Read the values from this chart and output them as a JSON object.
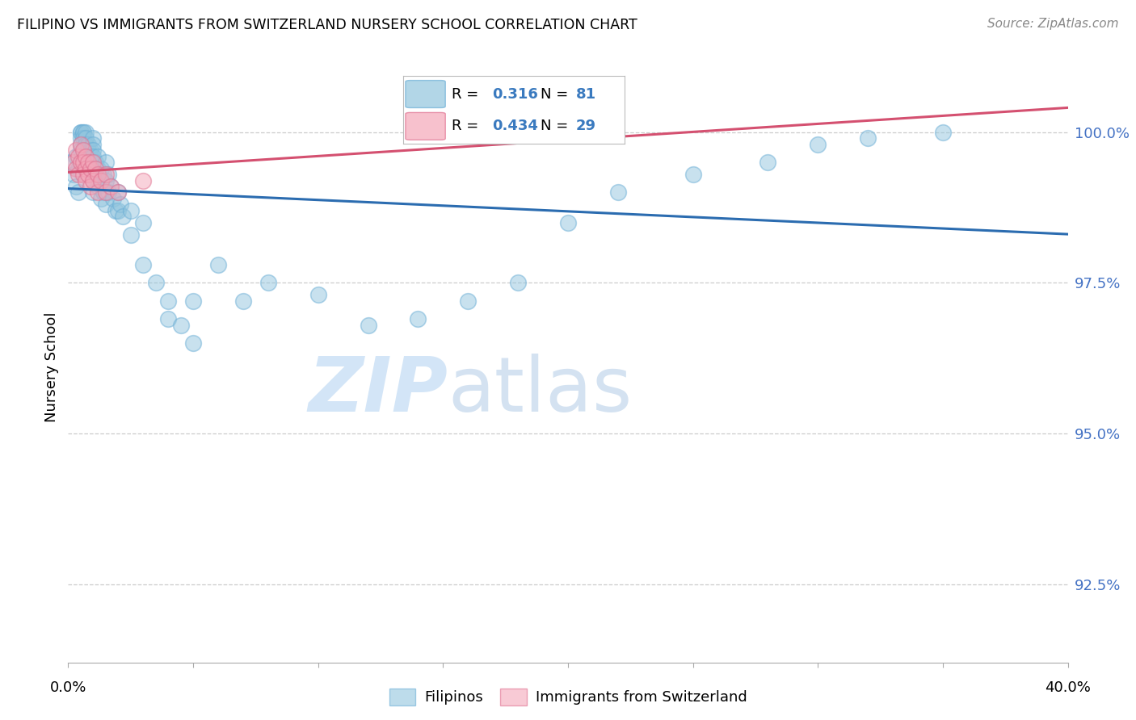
{
  "title": "FILIPINO VS IMMIGRANTS FROM SWITZERLAND NURSERY SCHOOL CORRELATION CHART",
  "source": "Source: ZipAtlas.com",
  "ylabel": "Nursery School",
  "yticks": [
    92.5,
    95.0,
    97.5,
    100.0
  ],
  "ytick_labels": [
    "92.5%",
    "95.0%",
    "97.5%",
    "100.0%"
  ],
  "xlim": [
    0.0,
    40.0
  ],
  "ylim": [
    91.2,
    101.0
  ],
  "legend1_R": "0.316",
  "legend1_N": "81",
  "legend2_R": "0.434",
  "legend2_N": "29",
  "blue_color": "#92c5de",
  "pink_color": "#f4a7b9",
  "blue_edge_color": "#6baed6",
  "pink_edge_color": "#e07090",
  "blue_line_color": "#2b6cb0",
  "pink_line_color": "#d45070",
  "blue_label_color": "#3a7abf",
  "pink_label_color": "#d45070",
  "ytick_color": "#4472c4",
  "watermark_zip_color": "#c8dff5",
  "watermark_atlas_color": "#b8d0e8",
  "grid_color": "#cccccc",
  "legend_box_color": "#e8e8e8",
  "filipinos_x": [
    0.1,
    0.2,
    0.3,
    0.3,
    0.4,
    0.4,
    0.5,
    0.5,
    0.5,
    0.5,
    0.5,
    0.5,
    0.6,
    0.6,
    0.6,
    0.6,
    0.7,
    0.7,
    0.7,
    0.7,
    0.8,
    0.8,
    0.8,
    0.8,
    0.9,
    0.9,
    0.9,
    1.0,
    1.0,
    1.0,
    1.0,
    1.0,
    1.0,
    1.0,
    1.1,
    1.1,
    1.2,
    1.2,
    1.2,
    1.3,
    1.3,
    1.3,
    1.4,
    1.4,
    1.5,
    1.5,
    1.5,
    1.6,
    1.6,
    1.7,
    1.8,
    1.9,
    2.0,
    2.0,
    2.1,
    2.2,
    2.5,
    2.5,
    3.0,
    3.0,
    3.5,
    4.0,
    4.0,
    4.5,
    5.0,
    5.0,
    6.0,
    7.0,
    8.0,
    10.0,
    12.0,
    14.0,
    16.0,
    18.0,
    20.0,
    22.0,
    25.0,
    28.0,
    30.0,
    32.0,
    35.0
  ],
  "filipinos_y": [
    99.5,
    99.3,
    99.6,
    99.1,
    99.4,
    99.0,
    100.0,
    100.0,
    99.9,
    99.8,
    99.7,
    99.5,
    100.0,
    100.0,
    99.9,
    99.7,
    100.0,
    99.9,
    99.8,
    99.6,
    99.8,
    99.7,
    99.5,
    99.3,
    99.7,
    99.6,
    99.4,
    99.9,
    99.8,
    99.7,
    99.6,
    99.4,
    99.2,
    99.0,
    99.5,
    99.3,
    99.6,
    99.4,
    99.1,
    99.4,
    99.2,
    98.9,
    99.3,
    99.0,
    99.5,
    99.2,
    98.8,
    99.3,
    99.0,
    99.1,
    98.9,
    98.7,
    99.0,
    98.7,
    98.8,
    98.6,
    98.7,
    98.3,
    98.5,
    97.8,
    97.5,
    97.2,
    96.9,
    96.8,
    96.5,
    97.2,
    97.8,
    97.2,
    97.5,
    97.3,
    96.8,
    96.9,
    97.2,
    97.5,
    98.5,
    99.0,
    99.3,
    99.5,
    99.8,
    99.9,
    100.0
  ],
  "swiss_x": [
    0.2,
    0.3,
    0.3,
    0.4,
    0.4,
    0.5,
    0.5,
    0.6,
    0.6,
    0.6,
    0.7,
    0.7,
    0.7,
    0.8,
    0.8,
    0.9,
    0.9,
    1.0,
    1.0,
    1.1,
    1.2,
    1.2,
    1.3,
    1.5,
    1.5,
    1.7,
    2.0,
    3.0,
    20.0
  ],
  "swiss_y": [
    99.5,
    99.7,
    99.4,
    99.6,
    99.3,
    99.8,
    99.5,
    99.7,
    99.5,
    99.3,
    99.6,
    99.4,
    99.2,
    99.5,
    99.3,
    99.4,
    99.1,
    99.5,
    99.2,
    99.4,
    99.3,
    99.0,
    99.2,
    99.3,
    99.0,
    99.1,
    99.0,
    99.2,
    100.0
  ]
}
